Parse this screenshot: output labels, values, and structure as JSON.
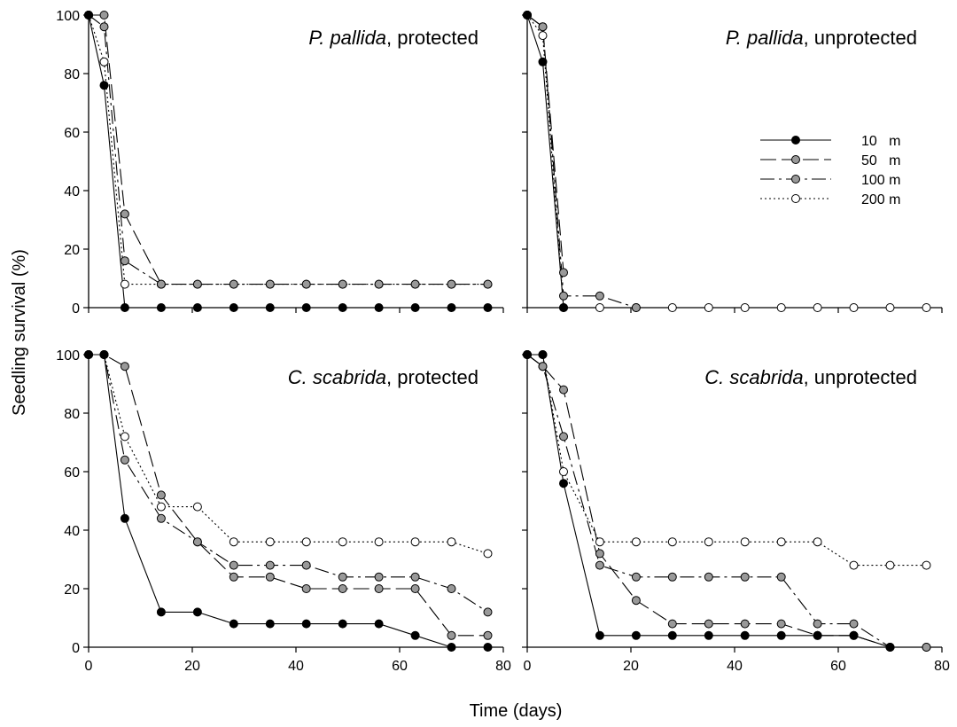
{
  "figure": {
    "ylabel": "Seedling survival (%)",
    "xlabel": "Time (days)"
  },
  "legend": {
    "placement": "panel-2-right",
    "entries": [
      {
        "label": "10   m",
        "style": "solid",
        "marker_fill": "#000000"
      },
      {
        "label": "50   m",
        "style": "dashed",
        "marker_fill": "#999999"
      },
      {
        "label": "100 m",
        "style": "dashdot",
        "marker_fill": "#999999"
      },
      {
        "label": "200 m",
        "style": "dotted",
        "marker_fill": "#ffffff"
      }
    ]
  },
  "chart_data": [
    {
      "type": "line",
      "title_italic": "P. pallida",
      "title_rest": ", protected",
      "xlim": [
        0,
        80
      ],
      "ylim": [
        0,
        100
      ],
      "xticks": [
        0,
        20,
        40,
        60,
        80
      ],
      "yticks": [
        0,
        20,
        40,
        60,
        80,
        100
      ],
      "show_x_tick_labels": false,
      "show_y_tick_labels": true,
      "series": [
        {
          "name": "10   m",
          "x": [
            0,
            3,
            7,
            14,
            21,
            28,
            35,
            42,
            49,
            56,
            63,
            70,
            77
          ],
          "y": [
            100,
            76,
            0,
            0,
            0,
            0,
            0,
            0,
            0,
            0,
            0,
            0,
            0
          ]
        },
        {
          "name": "50   m",
          "x": [
            0,
            3,
            7,
            14
          ],
          "y": [
            100,
            100,
            32,
            8
          ]
        },
        {
          "name": "100 m",
          "x": [
            0,
            3,
            7,
            14,
            21,
            28,
            35,
            42,
            49,
            56,
            63,
            70,
            77
          ],
          "y": [
            100,
            96,
            16,
            8,
            8,
            8,
            8,
            8,
            8,
            8,
            8,
            8,
            8
          ]
        },
        {
          "name": "200 m",
          "x": [
            0,
            3,
            7,
            14,
            21,
            28,
            35,
            42,
            49,
            56,
            63,
            70,
            77
          ],
          "y": [
            100,
            84,
            8,
            8,
            8,
            8,
            8,
            8,
            8,
            8,
            8,
            8,
            8
          ]
        }
      ]
    },
    {
      "type": "line",
      "title_italic": "P. pallida",
      "title_rest": ", unprotected",
      "xlim": [
        0,
        80
      ],
      "ylim": [
        0,
        100
      ],
      "xticks": [
        0,
        20,
        40,
        60,
        80
      ],
      "yticks": [
        0,
        20,
        40,
        60,
        80,
        100
      ],
      "show_x_tick_labels": false,
      "show_y_tick_labels": false,
      "series": [
        {
          "name": "10   m",
          "x": [
            0,
            3,
            7
          ],
          "y": [
            100,
            84,
            0
          ]
        },
        {
          "name": "50   m",
          "x": [
            0,
            3,
            7
          ],
          "y": [
            100,
            96,
            12
          ]
        },
        {
          "name": "100 m",
          "x": [
            0,
            3,
            7,
            14,
            21
          ],
          "y": [
            100,
            96,
            4,
            4,
            0
          ]
        },
        {
          "name": "200 m",
          "x": [
            0,
            3,
            7,
            14,
            21,
            28,
            35,
            42,
            49,
            56,
            63,
            70,
            77
          ],
          "y": [
            100,
            93,
            0,
            0,
            0,
            0,
            0,
            0,
            0,
            0,
            0,
            0,
            0
          ]
        }
      ]
    },
    {
      "type": "line",
      "title_italic": "C. scabrida",
      "title_rest": ", protected",
      "xlim": [
        0,
        80
      ],
      "ylim": [
        0,
        100
      ],
      "xticks": [
        0,
        20,
        40,
        60,
        80
      ],
      "yticks": [
        0,
        20,
        40,
        60,
        80,
        100
      ],
      "show_x_tick_labels": true,
      "show_y_tick_labels": true,
      "series": [
        {
          "name": "10   m",
          "x": [
            0,
            3,
            7,
            14,
            21,
            28,
            35,
            42,
            49,
            56,
            63,
            70,
            77
          ],
          "y": [
            100,
            100,
            44,
            12,
            12,
            8,
            8,
            8,
            8,
            8,
            4,
            0,
            0
          ]
        },
        {
          "name": "50   m",
          "x": [
            0,
            3,
            7,
            14,
            21,
            28,
            35,
            42,
            49,
            56,
            63,
            70,
            77
          ],
          "y": [
            100,
            100,
            96,
            52,
            36,
            24,
            24,
            20,
            20,
            20,
            20,
            4,
            4
          ]
        },
        {
          "name": "100 m",
          "x": [
            0,
            3,
            7,
            14,
            21,
            28,
            35,
            42,
            49,
            56,
            63,
            70,
            77
          ],
          "y": [
            100,
            100,
            64,
            44,
            36,
            28,
            28,
            28,
            24,
            24,
            24,
            20,
            12
          ]
        },
        {
          "name": "200 m",
          "x": [
            0,
            3,
            7,
            14,
            21,
            28,
            35,
            42,
            49,
            56,
            63,
            70,
            77
          ],
          "y": [
            100,
            100,
            72,
            48,
            48,
            36,
            36,
            36,
            36,
            36,
            36,
            36,
            32
          ]
        }
      ]
    },
    {
      "type": "line",
      "title_italic": "C. scabrida",
      "title_rest": ", unprotected",
      "xlim": [
        0,
        80
      ],
      "ylim": [
        0,
        100
      ],
      "xticks": [
        0,
        20,
        40,
        60,
        80
      ],
      "yticks": [
        0,
        20,
        40,
        60,
        80,
        100
      ],
      "show_x_tick_labels": true,
      "show_y_tick_labels": false,
      "series": [
        {
          "name": "10   m",
          "x": [
            0,
            3,
            7,
            14,
            21,
            28,
            35,
            42,
            49,
            56,
            63,
            70
          ],
          "y": [
            100,
            100,
            56,
            4,
            4,
            4,
            4,
            4,
            4,
            4,
            4,
            0
          ]
        },
        {
          "name": "50   m",
          "x": [
            0,
            3,
            7,
            14,
            21,
            28,
            35,
            42,
            49,
            56,
            63,
            70,
            77
          ],
          "y": [
            100,
            96,
            88,
            32,
            16,
            8,
            8,
            8,
            8,
            4,
            4,
            0,
            0
          ]
        },
        {
          "name": "100 m",
          "x": [
            0,
            3,
            7,
            14,
            21,
            28,
            35,
            42,
            49,
            56,
            63,
            70,
            77
          ],
          "y": [
            100,
            96,
            72,
            28,
            24,
            24,
            24,
            24,
            24,
            8,
            8,
            0,
            0
          ]
        },
        {
          "name": "200 m",
          "x": [
            0,
            3,
            7,
            14,
            21,
            28,
            35,
            42,
            49,
            56,
            63,
            70,
            77
          ],
          "y": [
            100,
            100,
            60,
            36,
            36,
            36,
            36,
            36,
            36,
            36,
            28,
            28,
            28
          ]
        }
      ]
    }
  ]
}
